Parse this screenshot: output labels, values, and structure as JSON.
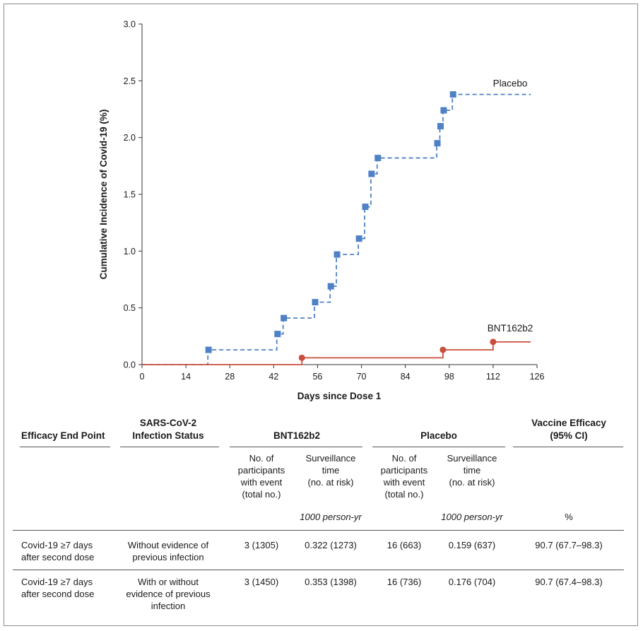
{
  "chart_data": {
    "type": "line",
    "step": true,
    "xlabel": "Days since Dose 1",
    "ylabel": "Cumulative Incidence of Covid-19 (%)",
    "xlim": [
      0,
      126
    ],
    "ylim": [
      0,
      3.0
    ],
    "xticks": [
      "0",
      "14",
      "28",
      "42",
      "56",
      "70",
      "84",
      "98",
      "112",
      "126"
    ],
    "yticks": [
      "0.0",
      "0.5",
      "1.0",
      "1.5",
      "2.0",
      "2.5",
      "3.0"
    ],
    "grid": false,
    "series": [
      {
        "name": "Placebo",
        "color": "#4f81c7",
        "line_style": "dashed",
        "marker": "square",
        "x": [
          0,
          21,
          43,
          45,
          55,
          60,
          62,
          69,
          71,
          73,
          75,
          94,
          95,
          96,
          99,
          124
        ],
        "y": [
          0,
          0.13,
          0.27,
          0.41,
          0.55,
          0.69,
          0.97,
          1.11,
          1.39,
          1.68,
          1.82,
          1.95,
          2.1,
          2.24,
          2.38,
          2.38
        ],
        "event_markers_x": [
          21,
          43,
          45,
          55,
          60,
          62,
          69,
          71,
          73,
          75,
          94,
          95,
          96,
          99
        ]
      },
      {
        "name": "BNT162b2",
        "color": "#c94f3d",
        "line_style": "solid",
        "marker": "circle",
        "x": [
          0,
          51,
          96,
          112,
          124
        ],
        "y": [
          0,
          0.06,
          0.13,
          0.2,
          0.2
        ],
        "event_markers_x": [
          51,
          96,
          112
        ]
      }
    ]
  },
  "table": {
    "col_headers": {
      "endpoint": "Efficacy End Point",
      "status_line1": "SARS-CoV-2",
      "status_line2": "Infection Status",
      "bnt": "BNT162b2",
      "placebo": "Placebo",
      "ve_line1": "Vaccine Efficacy",
      "ve_line2": "(95% CI)"
    },
    "sub_headers": {
      "participants": [
        "No. of",
        "participants",
        "with event",
        "(total no.)"
      ],
      "surveillance": [
        "Surveillance",
        "time",
        "(no. at risk)"
      ],
      "unit_time": "1000 person-yr",
      "unit_ve": "%"
    },
    "rows": [
      {
        "endpoint": [
          "Covid-19 ≥7 days",
          "after second dose"
        ],
        "status": [
          "Without evidence of",
          "previous infection"
        ],
        "bnt_events": "3 (1305)",
        "bnt_time": "0.322 (1273)",
        "placebo_events": "16 (663)",
        "placebo_time": "0.159 (637)",
        "ve": "90.7 (67.7–98.3)"
      },
      {
        "endpoint": [
          "Covid-19 ≥7 days",
          "after second dose"
        ],
        "status": [
          "With or without",
          "evidence of previous",
          "infection"
        ],
        "bnt_events": "3 (1450)",
        "bnt_time": "0.353 (1398)",
        "placebo_events": "16 (736)",
        "placebo_time": "0.176 (704)",
        "ve": "90.7 (67.4–98.3)"
      }
    ]
  }
}
